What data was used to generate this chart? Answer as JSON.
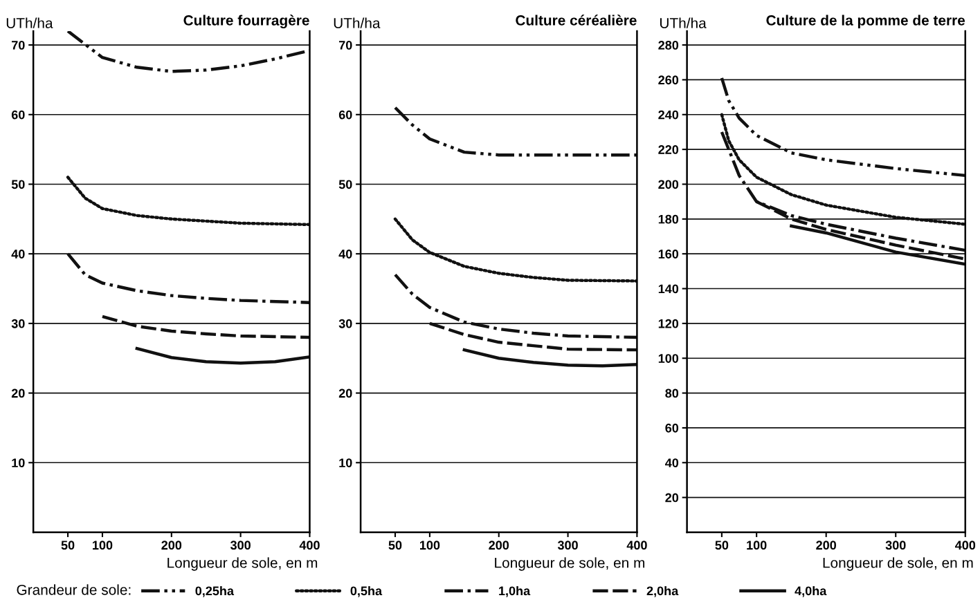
{
  "chart_data": [
    {
      "type": "line",
      "title": "Culture fourragère",
      "ylabel": "UTh/ha",
      "xlabel": "Longueur de sole, en m",
      "xlim": [
        0,
        400
      ],
      "xticks": [
        50,
        100,
        200,
        300,
        400
      ],
      "ylim": [
        0,
        72
      ],
      "yticks": [
        10,
        20,
        30,
        40,
        50,
        60,
        70
      ],
      "grid": "y",
      "legend": "bottom",
      "legend_title": "Grandeur de sole:",
      "series": [
        {
          "name": "0,25ha",
          "color": "#111111",
          "line_style": "dashdotdot",
          "x": [
            50,
            100,
            150,
            200,
            250,
            300,
            350,
            400
          ],
          "values": [
            72,
            68.2,
            66.8,
            66.2,
            66.4,
            67,
            68,
            69.2
          ]
        },
        {
          "name": "0,5ha",
          "color": "#111111",
          "line_style": "dotted",
          "x": [
            50,
            75,
            100,
            150,
            200,
            250,
            300,
            350,
            400
          ],
          "values": [
            51,
            48,
            46.5,
            45.5,
            45,
            44.7,
            44.4,
            44.3,
            44.2
          ]
        },
        {
          "name": "1,0ha",
          "color": "#111111",
          "line_style": "dashdot",
          "x": [
            50,
            75,
            100,
            150,
            200,
            250,
            300,
            400
          ],
          "values": [
            40,
            37,
            35.8,
            34.7,
            34,
            33.6,
            33.3,
            33
          ]
        },
        {
          "name": "2,0ha",
          "color": "#111111",
          "line_style": "dashed",
          "x": [
            100,
            150,
            200,
            250,
            300,
            400
          ],
          "values": [
            31,
            29.6,
            28.9,
            28.5,
            28.2,
            28
          ]
        },
        {
          "name": "4,0ha",
          "color": "#111111",
          "line_style": "solid",
          "x": [
            150,
            200,
            250,
            300,
            350,
            400
          ],
          "values": [
            26.4,
            25.1,
            24.5,
            24.3,
            24.5,
            25.2
          ]
        }
      ]
    },
    {
      "type": "line",
      "title": "Culture céréalière",
      "ylabel": "UTh/ha",
      "xlabel": "Longueur de sole, en m",
      "xlim": [
        0,
        400
      ],
      "xticks": [
        50,
        100,
        200,
        300,
        400
      ],
      "ylim": [
        0,
        72
      ],
      "yticks": [
        10,
        20,
        30,
        40,
        50,
        60,
        70
      ],
      "grid": "y",
      "series": [
        {
          "color": "#111111",
          "line_style": "dashdotdot",
          "x": [
            50,
            75,
            100,
            150,
            200,
            300,
            400
          ],
          "values": [
            61,
            58.5,
            56.5,
            54.6,
            54.2,
            54.2,
            54.2
          ]
        },
        {
          "color": "#111111",
          "line_style": "dotted",
          "x": [
            50,
            75,
            100,
            150,
            200,
            250,
            300,
            400
          ],
          "values": [
            45,
            42,
            40.2,
            38.2,
            37.2,
            36.6,
            36.2,
            36.1
          ]
        },
        {
          "color": "#111111",
          "line_style": "dashdot",
          "x": [
            50,
            75,
            100,
            150,
            200,
            250,
            300,
            400
          ],
          "values": [
            37,
            34.2,
            32.3,
            30.2,
            29.2,
            28.6,
            28.2,
            28
          ]
        },
        {
          "color": "#111111",
          "line_style": "dashed",
          "x": [
            100,
            150,
            200,
            250,
            300,
            400
          ],
          "values": [
            30,
            28.4,
            27.3,
            26.8,
            26.3,
            26.2
          ]
        },
        {
          "color": "#111111",
          "line_style": "solid",
          "x": [
            150,
            200,
            250,
            300,
            350,
            400
          ],
          "values": [
            26.2,
            25,
            24.4,
            24,
            23.9,
            24.1
          ]
        }
      ]
    },
    {
      "type": "line",
      "title": "Culture de la pomme de terre",
      "ylabel": "UTh/ha",
      "xlabel": "Longueur de sole, en m",
      "xlim": [
        0,
        400
      ],
      "xticks": [
        50,
        100,
        200,
        300,
        400
      ],
      "ylim": [
        0,
        288
      ],
      "yticks": [
        20,
        40,
        60,
        80,
        100,
        120,
        140,
        160,
        180,
        200,
        220,
        240,
        260,
        280
      ],
      "grid": "y",
      "series": [
        {
          "color": "#111111",
          "line_style": "dashdotdot",
          "x": [
            50,
            60,
            75,
            100,
            150,
            200,
            300,
            400
          ],
          "values": [
            261,
            248,
            238,
            228,
            218,
            214,
            209,
            205
          ]
        },
        {
          "color": "#111111",
          "line_style": "dotted",
          "x": [
            50,
            60,
            75,
            100,
            150,
            200,
            300,
            400
          ],
          "values": [
            240,
            225,
            214,
            204,
            194,
            188,
            181,
            177
          ]
        },
        {
          "color": "#111111",
          "line_style": "dashdot",
          "x": [
            50,
            75,
            100,
            150,
            200,
            300,
            400
          ],
          "values": [
            230,
            205,
            190,
            182,
            177,
            169,
            162
          ]
        },
        {
          "color": "#111111",
          "line_style": "dashed",
          "x": [
            100,
            150,
            200,
            300,
            400
          ],
          "values": [
            190,
            180,
            174,
            165,
            157
          ]
        },
        {
          "color": "#111111",
          "line_style": "solid",
          "x": [
            150,
            200,
            300,
            400
          ],
          "values": [
            176,
            172,
            161,
            154
          ]
        }
      ]
    }
  ]
}
